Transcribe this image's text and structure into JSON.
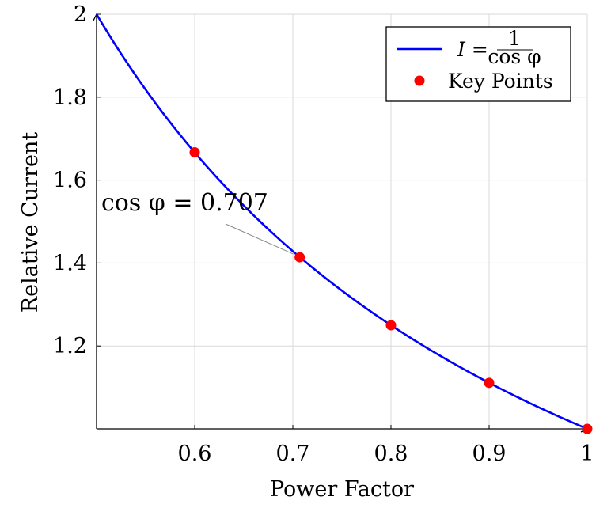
{
  "chart_data": {
    "type": "line",
    "title": "",
    "xlabel": "Power Factor",
    "ylabel": "Relative Current",
    "xlim": [
      0.5,
      1.0
    ],
    "ylim": [
      1.0,
      2.0
    ],
    "x_ticks": [
      0.6,
      0.7,
      0.8,
      0.9,
      1.0
    ],
    "x_tick_labels": [
      "0.6",
      "0.7",
      "0.8",
      "0.9",
      "1"
    ],
    "y_ticks": [
      1.2,
      1.4,
      1.6,
      1.8,
      2.0
    ],
    "y_tick_labels": [
      "1.2",
      "1.4",
      "1.6",
      "1.8",
      "2"
    ],
    "grid": true,
    "legend_position": "top-right",
    "series": [
      {
        "name": "I = 1/cos φ",
        "kind": "line",
        "function": "1/x",
        "color": "#0000ff",
        "x": [
          0.5,
          0.55,
          0.6,
          0.65,
          0.7,
          0.75,
          0.8,
          0.85,
          0.9,
          0.95,
          1.0
        ],
        "values": [
          2.0,
          1.818,
          1.667,
          1.538,
          1.429,
          1.333,
          1.25,
          1.176,
          1.111,
          1.053,
          1.0
        ]
      },
      {
        "name": "Key Points",
        "kind": "scatter",
        "color": "#ff0000",
        "x": [
          0.6,
          0.707,
          0.8,
          0.9,
          1.0
        ],
        "values": [
          1.667,
          1.414,
          1.25,
          1.111,
          1.0
        ]
      }
    ],
    "legend": {
      "line_label_lhs": "I =",
      "line_label_num": "1",
      "line_label_den": "cos φ",
      "points_label": "Key Points"
    },
    "annotation": {
      "text": "cos φ = 0.707",
      "x": 0.707,
      "y": 1.414
    }
  }
}
